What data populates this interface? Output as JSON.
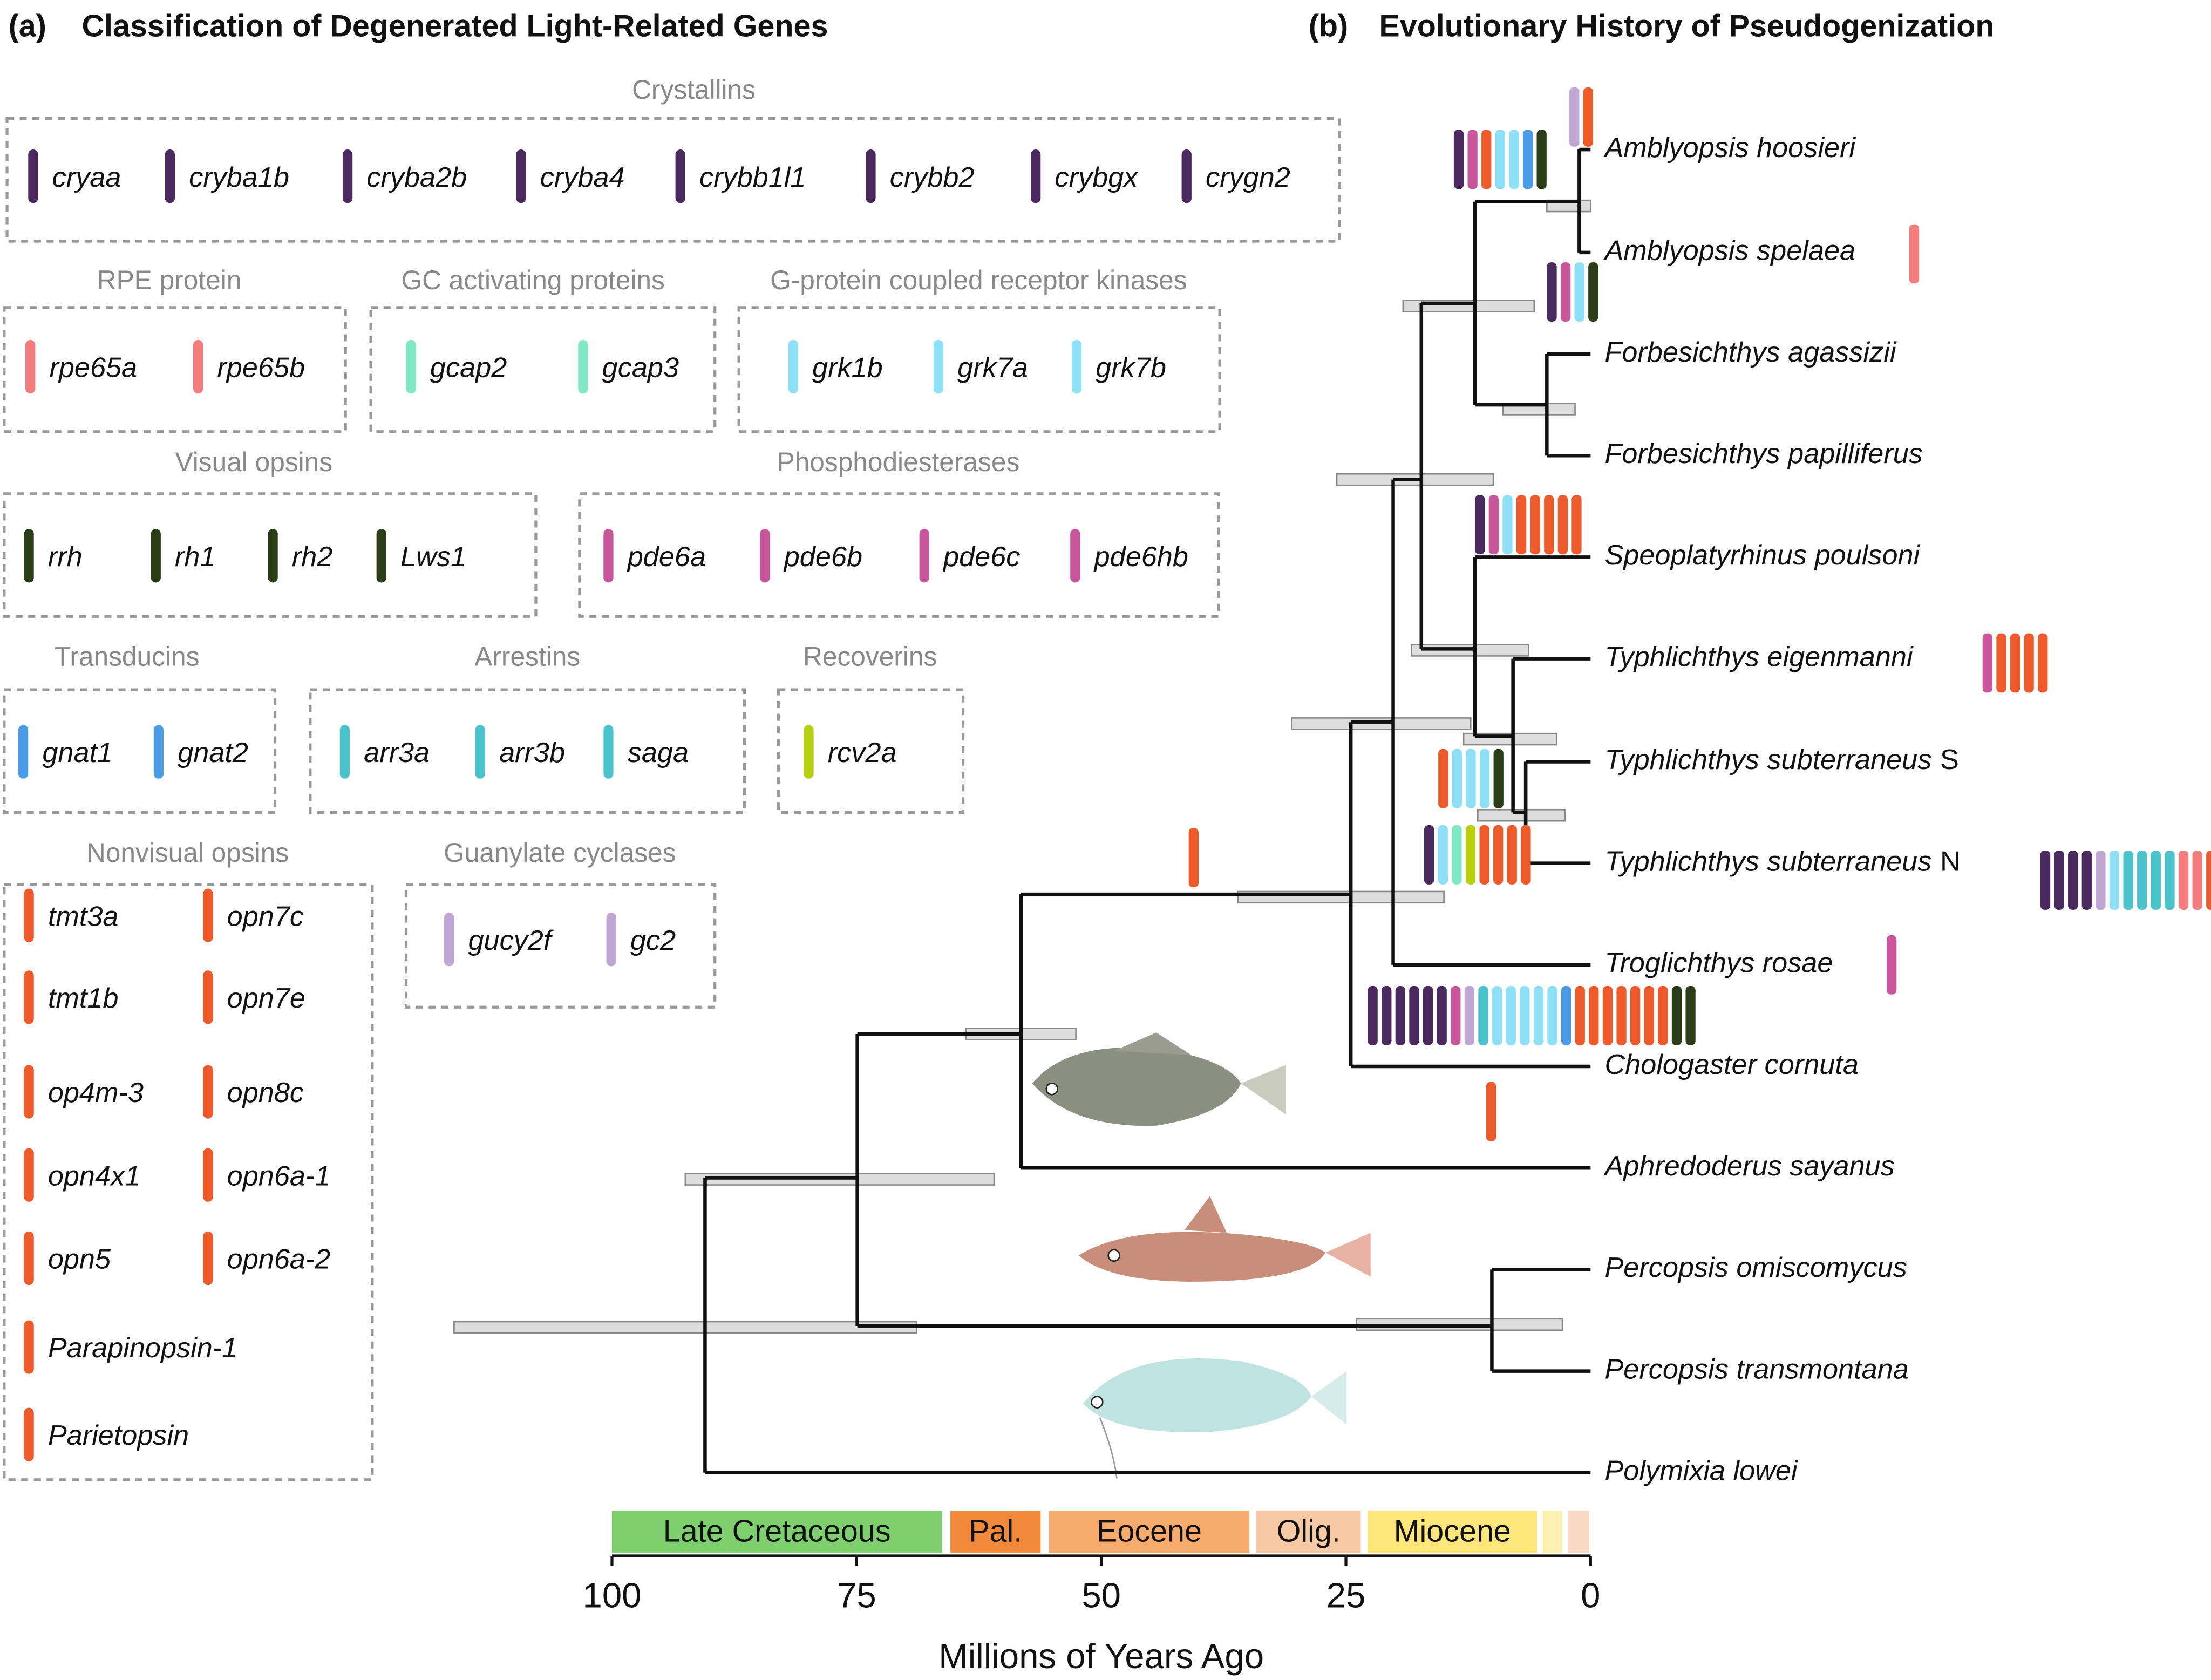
{
  "panel_a": {
    "label": "(a)",
    "title": "Classification of Degenerated Light-Related Genes",
    "groups": [
      {
        "title": "Crystallins",
        "color": "#4a2a5e",
        "genes": [
          "cryaa",
          "cryba1b",
          "cryba2b",
          "cryba4",
          "crybb1l1",
          "crybb2",
          "crybgx",
          "crygn2"
        ]
      },
      {
        "title": "RPE protein",
        "color": "#f47c7c",
        "genes": [
          "rpe65a",
          "rpe65b"
        ]
      },
      {
        "title": "GC activating proteins",
        "color": "#7fe8c4",
        "genes": [
          "gcap2",
          "gcap3"
        ]
      },
      {
        "title": "G-protein coupled receptor kinases",
        "color": "#8de0f5",
        "genes": [
          "grk1b",
          "grk7a",
          "grk7b"
        ]
      },
      {
        "title": "Visual opsins",
        "color": "#2a3d17",
        "genes": [
          "rrh",
          "rh1",
          "rh2",
          "Lws1"
        ]
      },
      {
        "title": "Phosphodiesterases",
        "color": "#c9559a",
        "genes": [
          "pde6a",
          "pde6b",
          "pde6c",
          "pde6hb"
        ]
      },
      {
        "title": "Transducins",
        "color": "#4a9be8",
        "genes": [
          "gnat1",
          "gnat2"
        ]
      },
      {
        "title": "Arrestins",
        "color": "#4bc3cc",
        "genes": [
          "arr3a",
          "arr3b",
          "saga"
        ]
      },
      {
        "title": "Recoverins",
        "color": "#b7cf0f",
        "genes": [
          "rcv2a"
        ]
      },
      {
        "title": "Nonvisual opsins",
        "color": "#ee5a2a",
        "genes": [
          "tmt3a",
          "opn7c",
          "tmt1b",
          "opn7e",
          "op4m-3",
          "opn8c",
          "opn4x1",
          "opn6a-1",
          "opn5",
          "opn6a-2",
          "Parapinopsin-1",
          "Parietopsin"
        ]
      },
      {
        "title": "Guanylate cyclases",
        "color": "#c0a6d4",
        "genes": [
          "gucy2f",
          "gc2"
        ]
      }
    ]
  },
  "panel_b": {
    "label": "(b)",
    "title": "Evolutionary History of Pseudogenization",
    "species": [
      {
        "name": "Amblyopsis hoosieri"
      },
      {
        "name": "Amblyopsis spelaea"
      },
      {
        "name": "Forbesichthys agassizii"
      },
      {
        "name": "Forbesichthys papilliferus"
      },
      {
        "name": "Speoplatyrhinus poulsoni"
      },
      {
        "name": "Typhlichthys eigenmanni"
      },
      {
        "name": "Typhlichthys subterraneus",
        "suffix": "S"
      },
      {
        "name": "Typhlichthys subterraneus",
        "suffix": "N"
      },
      {
        "name": "Troglichthys rosae"
      },
      {
        "name": "Chologaster cornuta"
      },
      {
        "name": "Aphredoderus sayanus"
      },
      {
        "name": "Percopsis omiscomycus"
      },
      {
        "name": "Percopsis transmontana"
      },
      {
        "name": "Polymixia lowei"
      }
    ],
    "epochs": [
      {
        "name": "Late Cretaceous",
        "color": "#7ecf6e"
      },
      {
        "name": "Pal.",
        "color": "#f08a3a"
      },
      {
        "name": "Eocene",
        "color": "#f6aa6c"
      },
      {
        "name": "Olig.",
        "color": "#f7c9a4"
      },
      {
        "name": "Miocene",
        "color": "#fde67a"
      }
    ],
    "xticks": [
      100,
      75,
      50,
      25,
      0
    ],
    "xlim": [
      100,
      0
    ],
    "xlabel": "Millions of Years Ago"
  }
}
